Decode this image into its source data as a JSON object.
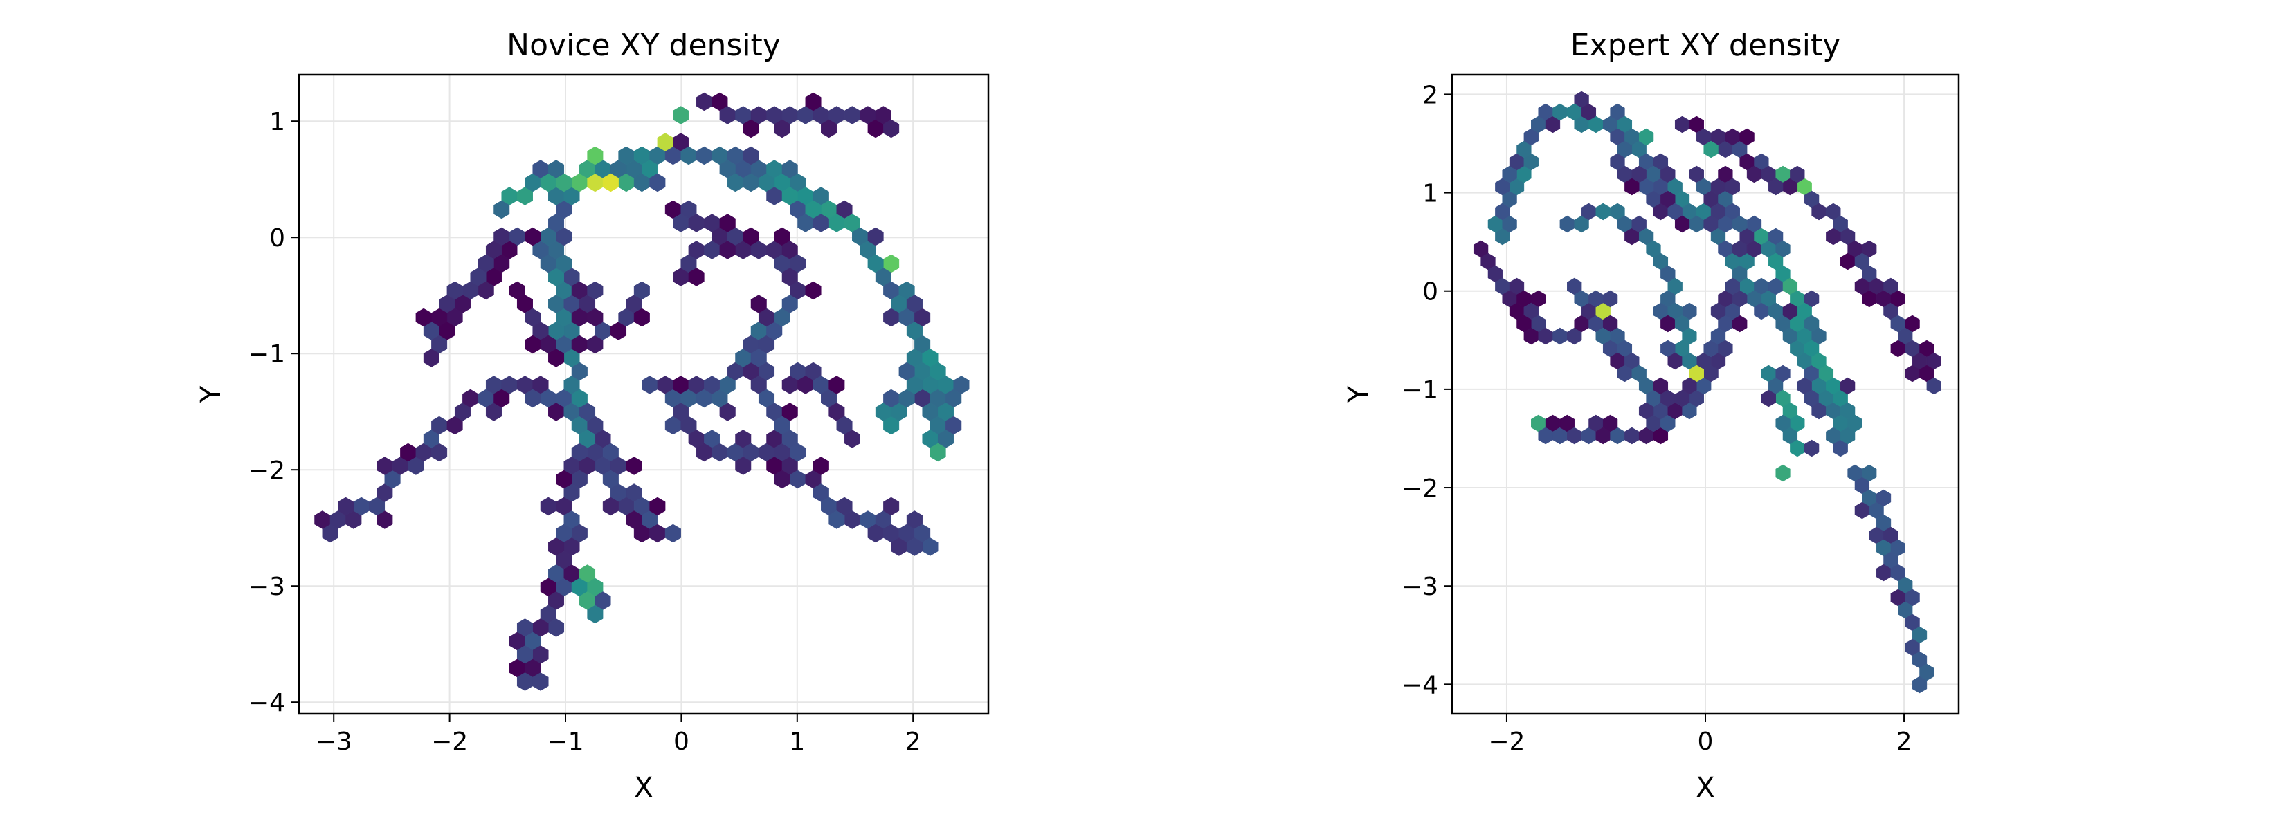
{
  "chart_data": [
    {
      "type": "heatmap",
      "subtype": "hexbin",
      "title": "Novice XY density",
      "xlabel": "X",
      "ylabel": "Y",
      "xlim": [
        -3.3,
        2.65
      ],
      "ylim": [
        -4.1,
        1.4
      ],
      "xticks": [
        -3,
        -2,
        -1,
        0,
        1,
        2
      ],
      "xtick_labels": [
        "−3",
        "−2",
        "−1",
        "0",
        "1",
        "2"
      ],
      "yticks": [
        -4,
        -3,
        -2,
        -1,
        0,
        1
      ],
      "ytick_labels": [
        "−4",
        "−3",
        "−2",
        "−1",
        "0",
        "1"
      ],
      "grid": true,
      "colormap": "viridis",
      "colormap_stops": [
        "#440154",
        "#3b528b",
        "#21918c",
        "#5ec962",
        "#fde725"
      ],
      "paths": [
        {
          "points": [
            [
              -3.05,
              -2.55
            ],
            [
              -2.7,
              -2.3
            ],
            [
              -2.35,
              -1.95
            ],
            [
              -2.05,
              -1.65
            ],
            [
              -1.75,
              -1.35
            ],
            [
              -1.45,
              -1.3
            ],
            [
              -1.1,
              -1.35
            ],
            [
              -0.8,
              -1.6
            ],
            [
              -0.65,
              -1.85
            ],
            [
              -0.55,
              -2.05
            ],
            [
              -0.55,
              -2.25
            ],
            [
              -0.35,
              -2.4
            ],
            [
              -0.1,
              -2.55
            ]
          ],
          "density": 0.1
        },
        {
          "points": [
            [
              -0.85,
              -1.75
            ],
            [
              -0.95,
              -2.2
            ],
            [
              -1.0,
              -2.6
            ],
            [
              -1.05,
              -3.0
            ],
            [
              -1.15,
              -3.25
            ],
            [
              -1.35,
              -3.5
            ],
            [
              -1.3,
              -3.85
            ]
          ],
          "density": 0.12
        },
        {
          "points": [
            [
              -0.85,
              -2.9
            ],
            [
              -0.75,
              -3.2
            ]
          ],
          "density": 0.55
        },
        {
          "points": [
            [
              -0.85,
              -1.75
            ],
            [
              -0.9,
              -1.3
            ],
            [
              -1.0,
              -0.9
            ],
            [
              -1.05,
              -0.5
            ],
            [
              -1.1,
              -0.1
            ],
            [
              -1.05,
              0.3
            ],
            [
              -0.7,
              0.55
            ],
            [
              -0.3,
              0.7
            ],
            [
              0.05,
              0.75
            ],
            [
              0.45,
              0.7
            ],
            [
              0.85,
              0.55
            ],
            [
              1.2,
              0.3
            ],
            [
              1.5,
              0.05
            ],
            [
              1.7,
              -0.2
            ],
            [
              1.9,
              -0.5
            ],
            [
              2.05,
              -0.9
            ],
            [
              2.15,
              -1.3
            ],
            [
              2.2,
              -1.7
            ]
          ],
          "density": 0.3
        },
        {
          "points": [
            [
              -1.55,
              0.3
            ],
            [
              -1.3,
              0.4
            ],
            [
              -1.0,
              0.5
            ],
            [
              -0.75,
              0.55
            ],
            [
              -0.5,
              0.5
            ],
            [
              -0.3,
              0.55
            ]
          ],
          "density": 0.45
        },
        {
          "points": [
            [
              -1.4,
              0.05
            ],
            [
              -1.6,
              -0.2
            ],
            [
              -1.9,
              -0.5
            ],
            [
              -2.1,
              -0.8
            ],
            [
              -2.1,
              -1.0
            ]
          ],
          "density": 0.06
        },
        {
          "points": [
            [
              -1.4,
              -0.5
            ],
            [
              -1.2,
              -0.8
            ],
            [
              -1.0,
              -0.95
            ],
            [
              -0.7,
              -0.9
            ],
            [
              -0.5,
              -0.7
            ],
            [
              -0.35,
              -0.45
            ]
          ],
          "density": 0.08
        },
        {
          "points": [
            [
              -1.25,
              -0.05
            ],
            [
              -1.05,
              -0.3
            ],
            [
              -0.85,
              -0.55
            ],
            [
              -0.7,
              -0.75
            ]
          ],
          "density": 0.06
        },
        {
          "points": [
            [
              -0.05,
              0.2
            ],
            [
              0.2,
              0.1
            ],
            [
              0.45,
              -0.05
            ],
            [
              0.7,
              -0.1
            ],
            [
              0.95,
              -0.2
            ],
            [
              1.05,
              -0.5
            ]
          ],
          "density": 0.07
        },
        {
          "points": [
            [
              -0.05,
              -0.3
            ],
            [
              0.25,
              -0.1
            ],
            [
              0.45,
              0.05
            ]
          ],
          "density": 0.06
        },
        {
          "points": [
            [
              -0.3,
              -1.3
            ],
            [
              0.0,
              -1.35
            ],
            [
              0.3,
              -1.35
            ],
            [
              0.5,
              -1.1
            ],
            [
              0.7,
              -0.8
            ],
            [
              0.85,
              -0.65
            ]
          ],
          "density": 0.2
        },
        {
          "points": [
            [
              -0.1,
              -1.6
            ],
            [
              0.2,
              -1.75
            ],
            [
              0.45,
              -1.85
            ],
            [
              0.7,
              -1.8
            ],
            [
              0.9,
              -1.95
            ],
            [
              1.15,
              -2.15
            ],
            [
              1.4,
              -2.4
            ],
            [
              1.75,
              -2.45
            ],
            [
              2.05,
              -2.6
            ],
            [
              2.15,
              -2.7
            ]
          ],
          "density": 0.12
        },
        {
          "points": [
            [
              0.65,
              -1.0
            ],
            [
              0.75,
              -1.45
            ],
            [
              0.95,
              -1.7
            ],
            [
              1.0,
              -1.9
            ]
          ],
          "density": 0.15
        },
        {
          "points": [
            [
              0.2,
              1.15
            ],
            [
              0.45,
              1.05
            ],
            [
              0.75,
              1.05
            ],
            [
              1.05,
              1.05
            ],
            [
              1.35,
              1.05
            ],
            [
              1.65,
              1.0
            ],
            [
              1.8,
              0.95
            ]
          ],
          "density": 0.05
        },
        {
          "points": [
            [
              1.05,
              -1.15
            ],
            [
              1.3,
              -1.45
            ],
            [
              1.5,
              -1.7
            ]
          ],
          "density": 0.08
        },
        {
          "points": [
            [
              1.75,
              -1.6
            ],
            [
              1.95,
              -1.3
            ],
            [
              2.1,
              -1.0
            ],
            [
              2.3,
              -1.3
            ],
            [
              2.3,
              -1.55
            ],
            [
              2.15,
              -1.85
            ]
          ],
          "density": 0.35
        },
        {
          "points": [
            [
              0.45,
              0.45
            ],
            [
              0.75,
              0.5
            ],
            [
              1.0,
              0.4
            ],
            [
              1.25,
              0.2
            ],
            [
              1.55,
              0.05
            ]
          ],
          "density": 0.4
        }
      ],
      "hotspots": [
        {
          "x": -0.55,
          "y": 0.5,
          "density": 0.95
        },
        {
          "x": -0.75,
          "y": 0.5,
          "density": 0.92
        },
        {
          "x": -0.1,
          "y": 0.85,
          "density": 0.9
        },
        {
          "x": -0.75,
          "y": 0.65,
          "density": 0.75
        },
        {
          "x": -0.85,
          "y": 0.45,
          "density": 0.7
        },
        {
          "x": 0.0,
          "y": 1.05,
          "density": 0.62
        },
        {
          "x": 1.75,
          "y": -0.25,
          "density": 0.75
        },
        {
          "x": 2.2,
          "y": -1.85,
          "density": 0.6
        }
      ]
    },
    {
      "type": "heatmap",
      "subtype": "hexbin",
      "title": "Expert XY density",
      "xlabel": "X",
      "ylabel": "Y",
      "xlim": [
        -2.55,
        2.55
      ],
      "ylim": [
        -4.3,
        2.2
      ],
      "xticks": [
        -2,
        0,
        2
      ],
      "xtick_labels": [
        "−2",
        "0",
        "2"
      ],
      "yticks": [
        -4,
        -3,
        -2,
        -1,
        0,
        1,
        2
      ],
      "ytick_labels": [
        "−4",
        "−3",
        "−2",
        "−1",
        "0",
        "1",
        "2"
      ],
      "grid": true,
      "colormap": "viridis",
      "colormap_stops": [
        "#440154",
        "#3b528b",
        "#21918c",
        "#5ec962",
        "#fde725"
      ],
      "paths": [
        {
          "points": [
            [
              -2.1,
              0.6
            ],
            [
              -1.95,
              1.0
            ],
            [
              -1.8,
              1.4
            ],
            [
              -1.65,
              1.8
            ],
            [
              -1.4,
              1.85
            ],
            [
              -1.2,
              1.75
            ],
            [
              -0.9,
              1.7
            ],
            [
              -0.7,
              1.45
            ],
            [
              -0.55,
              1.2
            ],
            [
              -0.35,
              1.0
            ],
            [
              -0.1,
              0.8
            ],
            [
              0.1,
              0.55
            ],
            [
              0.35,
              0.25
            ],
            [
              0.55,
              -0.05
            ],
            [
              0.75,
              -0.35
            ],
            [
              0.95,
              -0.65
            ],
            [
              1.1,
              -0.95
            ],
            [
              1.25,
              -1.2
            ],
            [
              1.35,
              -1.5
            ]
          ],
          "density": 0.3
        },
        {
          "points": [
            [
              -0.1,
              1.65
            ],
            [
              0.15,
              1.5
            ],
            [
              0.4,
              1.4
            ],
            [
              0.65,
              1.25
            ],
            [
              0.9,
              1.1
            ],
            [
              1.1,
              0.95
            ],
            [
              1.3,
              0.75
            ],
            [
              1.5,
              0.5
            ],
            [
              1.7,
              0.15
            ],
            [
              1.9,
              -0.15
            ],
            [
              2.05,
              -0.45
            ],
            [
              2.15,
              -0.8
            ],
            [
              2.25,
              -0.95
            ]
          ],
          "density": 0.08
        },
        {
          "points": [
            [
              1.55,
              -1.8
            ],
            [
              1.7,
              -2.2
            ],
            [
              1.85,
              -2.6
            ],
            [
              1.95,
              -2.9
            ],
            [
              2.05,
              -3.2
            ],
            [
              2.1,
              -3.5
            ],
            [
              2.15,
              -3.8
            ],
            [
              2.2,
              -4.0
            ]
          ],
          "density": 0.22
        },
        {
          "points": [
            [
              -2.25,
              0.45
            ],
            [
              -2.05,
              0.15
            ],
            [
              -1.85,
              -0.2
            ],
            [
              -1.6,
              -0.4
            ],
            [
              -1.4,
              -0.5
            ],
            [
              -1.15,
              -0.3
            ],
            [
              -1.0,
              -0.1
            ]
          ],
          "density": 0.08
        },
        {
          "points": [
            [
              -1.7,
              -1.3
            ],
            [
              -1.5,
              -1.45
            ],
            [
              -1.2,
              -1.45
            ],
            [
              -0.9,
              -1.45
            ],
            [
              -0.6,
              -1.45
            ],
            [
              -0.4,
              -1.3
            ],
            [
              -0.15,
              -1.25
            ],
            [
              0.0,
              -0.95
            ],
            [
              0.15,
              -0.55
            ],
            [
              0.25,
              -0.15
            ],
            [
              0.35,
              0.3
            ],
            [
              0.45,
              0.65
            ]
          ],
          "density": 0.12
        },
        {
          "points": [
            [
              -1.35,
              0.65
            ],
            [
              -1.15,
              0.8
            ],
            [
              -0.9,
              0.8
            ],
            [
              -0.65,
              0.6
            ],
            [
              -0.45,
              0.3
            ],
            [
              -0.35,
              0.0
            ],
            [
              -0.25,
              -0.3
            ],
            [
              -0.2,
              -0.6
            ],
            [
              -0.15,
              -0.8
            ]
          ],
          "density": 0.28
        },
        {
          "points": [
            [
              -1.25,
              0.0
            ],
            [
              -1.05,
              -0.3
            ],
            [
              -0.9,
              -0.55
            ],
            [
              -0.7,
              -0.85
            ],
            [
              -0.5,
              -1.05
            ],
            [
              -0.35,
              -1.3
            ]
          ],
          "density": 0.18
        },
        {
          "points": [
            [
              0.55,
              0.6
            ],
            [
              0.75,
              0.2
            ],
            [
              0.9,
              -0.1
            ],
            [
              1.05,
              -0.4
            ],
            [
              1.2,
              -0.8
            ],
            [
              1.4,
              -1.1
            ],
            [
              1.5,
              -1.45
            ]
          ],
          "density": 0.4
        },
        {
          "points": [
            [
              0.65,
              -0.8
            ],
            [
              0.8,
              -1.1
            ],
            [
              0.9,
              -1.4
            ],
            [
              0.95,
              -1.6
            ]
          ],
          "density": 0.4
        },
        {
          "points": [
            [
              -0.05,
              1.15
            ],
            [
              0.15,
              0.95
            ],
            [
              0.3,
              0.7
            ]
          ],
          "density": 0.2
        },
        {
          "points": [
            [
              -0.8,
              1.2
            ],
            [
              -0.6,
              1.05
            ],
            [
              -0.35,
              0.85
            ]
          ],
          "density": 0.12
        }
      ],
      "hotspots": [
        {
          "x": -1.05,
          "y": -0.25,
          "density": 0.9
        },
        {
          "x": -0.05,
          "y": -0.8,
          "density": 0.92
        },
        {
          "x": 0.95,
          "y": 1.1,
          "density": 0.75
        },
        {
          "x": 0.8,
          "y": 1.25,
          "density": 0.62
        },
        {
          "x": 0.8,
          "y": 0.1,
          "density": 0.6
        },
        {
          "x": -1.65,
          "y": -1.35,
          "density": 0.6
        },
        {
          "x": 0.75,
          "y": -1.8,
          "density": 0.6
        },
        {
          "x": 0.1,
          "y": 1.5,
          "density": 0.55
        },
        {
          "x": -0.6,
          "y": 1.55,
          "density": 0.55
        },
        {
          "x": 0.85,
          "y": -1.1,
          "density": 0.55
        }
      ]
    }
  ]
}
